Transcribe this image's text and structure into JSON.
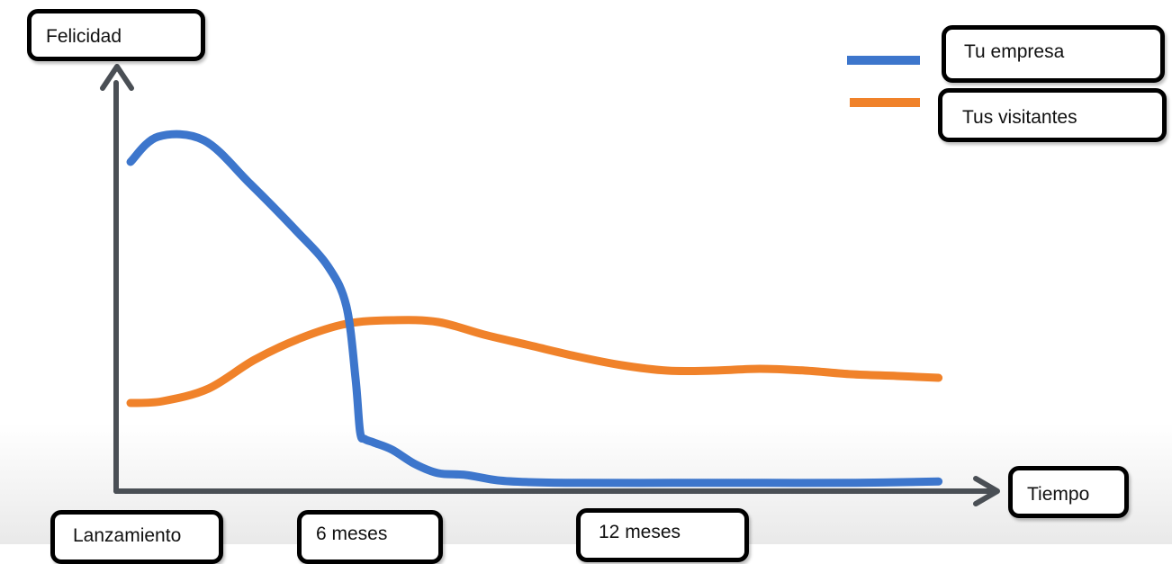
{
  "chart_data": {
    "type": "line",
    "ylabel": "Felicidad",
    "xlabel": "Tiempo",
    "tick_labels": [
      "Lanzamiento",
      "6 meses",
      "12 meses"
    ],
    "x_ticks": [
      0,
      6,
      12
    ],
    "xlim": [
      0,
      18
    ],
    "ylim": [
      0,
      10
    ],
    "grid": false,
    "legend_position": "top-right",
    "series": [
      {
        "name": "Tu empresa",
        "color": "#3d76cc",
        "x": [
          0,
          0.6,
          1.6,
          2.6,
          3.6,
          4.3,
          4.7,
          4.9,
          5.0,
          5.1,
          5.3,
          5.7,
          6.2,
          6.7,
          7.3,
          8.0,
          8.7,
          9.8,
          11.8,
          13.8,
          15.8,
          17.6
        ],
        "y": [
          9.0,
          9.7,
          9.6,
          8.4,
          7.1,
          6.1,
          5.0,
          3.0,
          1.5,
          1.3,
          1.2,
          1.0,
          0.6,
          0.35,
          0.3,
          0.15,
          0.1,
          0.08,
          0.08,
          0.08,
          0.08,
          0.12
        ]
      },
      {
        "name": "Tus visitantes",
        "color": "#f0822a",
        "x": [
          0,
          0.7,
          1.7,
          2.7,
          3.7,
          4.7,
          5.7,
          6.7,
          7.7,
          8.7,
          9.7,
          10.7,
          11.7,
          12.7,
          13.7,
          14.7,
          15.7,
          16.7,
          17.6
        ],
        "y": [
          2.3,
          2.35,
          2.7,
          3.5,
          4.1,
          4.5,
          4.6,
          4.55,
          4.2,
          3.9,
          3.6,
          3.35,
          3.2,
          3.2,
          3.25,
          3.2,
          3.1,
          3.05,
          3.0
        ]
      }
    ]
  }
}
